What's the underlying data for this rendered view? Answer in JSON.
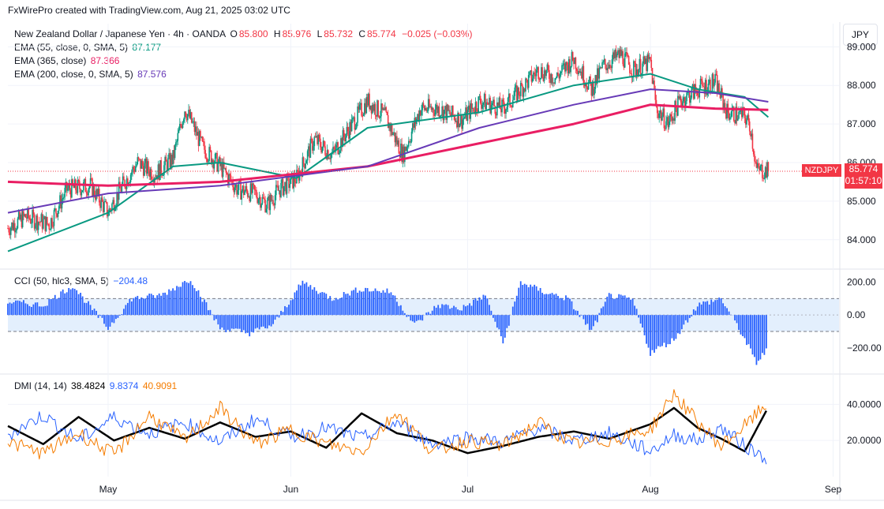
{
  "header": {
    "attribution": "FxWirePro created with TradingView.com, Aug 21, 2025 03:02 UTC"
  },
  "legend": {
    "symbol": "New Zealand Dollar / Japanese Yen · 4h · OANDA",
    "o_label": "O",
    "o_value": "85.800",
    "h_label": "H",
    "h_value": "85.976",
    "l_label": "L",
    "l_value": "85.732",
    "c_label": "C",
    "c_value": "85.774",
    "change": "−0.025 (−0.03%)",
    "ema55_label": "EMA (55, close, 0, SMA, 5)",
    "ema55_value": "87.177",
    "ema365_label": "EMA (365, close)",
    "ema365_value": "87.366",
    "ema200_label": "EMA (200, close, 0, SMA, 5)",
    "ema200_value": "87.576",
    "cci_label": "CCI (50, hlc3, SMA, 5)",
    "cci_value": "−204.48",
    "dmi_label": "DMI (14, 14)",
    "dmi_adx": "38.4824",
    "dmi_plus": "9.8374",
    "dmi_minus": "40.9091"
  },
  "currency_button": "JPY",
  "price_tag": {
    "symbol": "NZDJPY",
    "price": "85.774",
    "countdown": "01:57:10"
  },
  "colors": {
    "up": "#089981",
    "down": "#f23645",
    "ema55": "#089981",
    "ema365": "#e91e63",
    "ema200": "#673ab7",
    "cci": "#2962ff",
    "adx": "#000000",
    "plus_di": "#2962ff",
    "minus_di": "#f57c00"
  },
  "chart_data": [
    {
      "type": "candlestick",
      "title": "New Zealand Dollar / Japanese Yen · 4h · OANDA",
      "x_ticks": [
        "May",
        "Jun",
        "Jul",
        "Aug",
        "Sep"
      ],
      "y_ticks": [
        "89.000",
        "88.000",
        "87.000",
        "86.000",
        "85.000",
        "84.000"
      ],
      "ylim": [
        83.3,
        89.6
      ],
      "close_path": [
        [
          "Apr 14",
          84.3
        ],
        [
          "Apr 17",
          84.6
        ],
        [
          "Apr 21",
          84.4
        ],
        [
          "Apr 24",
          85.3
        ],
        [
          "Apr 28",
          85.4
        ],
        [
          "May 1",
          84.7
        ],
        [
          "May 3",
          85.3
        ],
        [
          "May 6",
          86.0
        ],
        [
          "May 9",
          85.7
        ],
        [
          "May 12",
          86.1
        ],
        [
          "May 14",
          87.4
        ],
        [
          "May 15",
          87.1
        ],
        [
          "May 17",
          86.4
        ],
        [
          "May 20",
          85.9
        ],
        [
          "May 23",
          85.3
        ],
        [
          "May 26",
          85.2
        ],
        [
          "May 28",
          84.9
        ],
        [
          "May 30",
          85.3
        ],
        [
          "Jun 2",
          85.6
        ],
        [
          "Jun 5",
          86.6
        ],
        [
          "Jun 8",
          86.2
        ],
        [
          "Jun 11",
          86.9
        ],
        [
          "Jun 14",
          87.6
        ],
        [
          "Jun 17",
          87.2
        ],
        [
          "Jun 20",
          86.2
        ],
        [
          "Jun 23",
          87.4
        ],
        [
          "Jun 26",
          87.4
        ],
        [
          "Jun 30",
          87.1
        ],
        [
          "Jul 3",
          87.6
        ],
        [
          "Jul 7",
          87.4
        ],
        [
          "Jul 10",
          87.9
        ],
        [
          "Jul 13",
          88.4
        ],
        [
          "Jul 16",
          88.2
        ],
        [
          "Jul 19",
          88.7
        ],
        [
          "Jul 22",
          87.9
        ],
        [
          "Jul 24",
          88.5
        ],
        [
          "Jul 27",
          88.8
        ],
        [
          "Jul 29",
          88.4
        ],
        [
          "Aug 1",
          88.6
        ],
        [
          "Aug 2",
          87.4
        ],
        [
          "Aug 4",
          87.0
        ],
        [
          "Aug 6",
          87.6
        ],
        [
          "Aug 9",
          87.9
        ],
        [
          "Aug 12",
          88.1
        ],
        [
          "Aug 14",
          87.3
        ],
        [
          "Aug 17",
          87.2
        ],
        [
          "Aug 18",
          86.9
        ],
        [
          "Aug 19",
          85.8
        ],
        [
          "Aug 21",
          85.774
        ]
      ],
      "series": [
        {
          "name": "EMA (55, close, 0, SMA, 5)",
          "values": [
            [
              "Apr 14",
              83.7
            ],
            [
              "May 1",
              84.7
            ],
            [
              "May 12",
              85.9
            ],
            [
              "May 20",
              86.0
            ],
            [
              "Jun 2",
              85.6
            ],
            [
              "Jun 14",
              86.9
            ],
            [
              "Jul 3",
              87.3
            ],
            [
              "Jul 19",
              88.0
            ],
            [
              "Aug 1",
              88.3
            ],
            [
              "Aug 9",
              87.9
            ],
            [
              "Aug 17",
              87.7
            ],
            [
              "Aug 21",
              87.177
            ]
          ]
        },
        {
          "name": "EMA (365, close)",
          "values": [
            [
              "Apr 14",
              85.5
            ],
            [
              "May 1",
              85.4
            ],
            [
              "May 20",
              85.5
            ],
            [
              "Jun 14",
              85.9
            ],
            [
              "Jul 3",
              86.5
            ],
            [
              "Jul 19",
              87.0
            ],
            [
              "Aug 1",
              87.5
            ],
            [
              "Aug 12",
              87.4
            ],
            [
              "Aug 21",
              87.366
            ]
          ]
        },
        {
          "name": "EMA (200, close, 0, SMA, 5)",
          "values": [
            [
              "Apr 14",
              84.7
            ],
            [
              "May 1",
              85.2
            ],
            [
              "May 20",
              85.4
            ],
            [
              "Jun 14",
              85.9
            ],
            [
              "Jul 3",
              86.9
            ],
            [
              "Jul 19",
              87.5
            ],
            [
              "Aug 1",
              87.9
            ],
            [
              "Aug 12",
              87.8
            ],
            [
              "Aug 21",
              87.576
            ]
          ]
        }
      ]
    },
    {
      "type": "bar",
      "title": "CCI (50, hlc3, SMA, 5)",
      "y_ticks": [
        "200.00",
        "0.00",
        "−200.00"
      ],
      "ylim": [
        -340,
        260
      ],
      "bands": [
        -100,
        100
      ],
      "values_path": [
        [
          "Apr 14",
          80
        ],
        [
          "Apr 20",
          60
        ],
        [
          "Apr 25",
          180
        ],
        [
          "May 1",
          -80
        ],
        [
          "May 5",
          100
        ],
        [
          "May 10",
          120
        ],
        [
          "May 15",
          220
        ],
        [
          "May 20",
          -80
        ],
        [
          "May 25",
          -110
        ],
        [
          "May 29",
          -60
        ],
        [
          "Jun 3",
          200
        ],
        [
          "Jun 8",
          100
        ],
        [
          "Jun 13",
          160
        ],
        [
          "Jun 18",
          140
        ],
        [
          "Jun 22",
          -60
        ],
        [
          "Jun 26",
          60
        ],
        [
          "Jun 30",
          40
        ],
        [
          "Jul 4",
          120
        ],
        [
          "Jul 7",
          -170
        ],
        [
          "Jul 10",
          200
        ],
        [
          "Jul 14",
          140
        ],
        [
          "Jul 18",
          100
        ],
        [
          "Jul 22",
          -100
        ],
        [
          "Jul 25",
          120
        ],
        [
          "Jul 29",
          90
        ],
        [
          "Aug 1",
          -230
        ],
        [
          "Aug 5",
          -150
        ],
        [
          "Aug 9",
          60
        ],
        [
          "Aug 13",
          100
        ],
        [
          "Aug 16",
          -80
        ],
        [
          "Aug 19",
          -290
        ],
        [
          "Aug 21",
          -204.48
        ]
      ]
    },
    {
      "type": "line",
      "title": "DMI (14, 14)",
      "y_ticks": [
        "40.0000",
        "20.0000"
      ],
      "ylim": [
        0,
        55
      ],
      "series": [
        {
          "name": "ADX",
          "values": [
            [
              "Apr 14",
              28
            ],
            [
              "Apr 20",
              18
            ],
            [
              "Apr 26",
              33
            ],
            [
              "May 2",
              20
            ],
            [
              "May 8",
              27
            ],
            [
              "May 14",
              21
            ],
            [
              "May 20",
              30
            ],
            [
              "May 26",
              22
            ],
            [
              "Jun 1",
              25
            ],
            [
              "Jun 7",
              16
            ],
            [
              "Jun 13",
              35
            ],
            [
              "Jun 19",
              24
            ],
            [
              "Jun 25",
              20
            ],
            [
              "Jul 1",
              13
            ],
            [
              "Jul 7",
              17
            ],
            [
              "Jul 13",
              22
            ],
            [
              "Jul 19",
              25
            ],
            [
              "Jul 25",
              21
            ],
            [
              "Aug 1",
              29
            ],
            [
              "Aug 5",
              38
            ],
            [
              "Aug 9",
              27
            ],
            [
              "Aug 13",
              21
            ],
            [
              "Aug 17",
              14
            ],
            [
              "Aug 21",
              38.4824
            ]
          ]
        },
        {
          "name": "+DI",
          "values": [
            [
              "Apr 14",
              23
            ],
            [
              "Apr 20",
              34
            ],
            [
              "Apr 26",
              20
            ],
            [
              "May 2",
              33
            ],
            [
              "May 8",
              24
            ],
            [
              "May 14",
              30
            ],
            [
              "May 20",
              19
            ],
            [
              "May 26",
              32
            ],
            [
              "Jun 1",
              22
            ],
            [
              "Jun 7",
              27
            ],
            [
              "Jun 13",
              21
            ],
            [
              "Jun 19",
              30
            ],
            [
              "Jun 25",
              18
            ],
            [
              "Jul 1",
              22
            ],
            [
              "Jul 7",
              19
            ],
            [
              "Jul 13",
              27
            ],
            [
              "Jul 19",
              20
            ],
            [
              "Jul 25",
              24
            ],
            [
              "Aug 1",
              14
            ],
            [
              "Aug 5",
              23
            ],
            [
              "Aug 9",
              20
            ],
            [
              "Aug 13",
              27
            ],
            [
              "Aug 17",
              17
            ],
            [
              "Aug 21",
              9.8374
            ]
          ]
        },
        {
          "name": "−DI",
          "values": [
            [
              "Apr 14",
              19
            ],
            [
              "Apr 20",
              13
            ],
            [
              "Apr 26",
              24
            ],
            [
              "May 2",
              12
            ],
            [
              "May 8",
              34
            ],
            [
              "May 14",
              20
            ],
            [
              "May 20",
              38
            ],
            [
              "May 26",
              18
            ],
            [
              "Jun 1",
              26
            ],
            [
              "Jun 7",
              18
            ],
            [
              "Jun 13",
              14
            ],
            [
              "Jun 19",
              36
            ],
            [
              "Jun 25",
              14
            ],
            [
              "Jul 1",
              20
            ],
            [
              "Jul 7",
              17
            ],
            [
              "Jul 13",
              30
            ],
            [
              "Jul 19",
              18
            ],
            [
              "Jul 25",
              20
            ],
            [
              "Aug 1",
              26
            ],
            [
              "Aug 5",
              46
            ],
            [
              "Aug 9",
              30
            ],
            [
              "Aug 13",
              17
            ],
            [
              "Aug 17",
              28
            ],
            [
              "Aug 21",
              40.9091
            ]
          ]
        }
      ]
    }
  ]
}
